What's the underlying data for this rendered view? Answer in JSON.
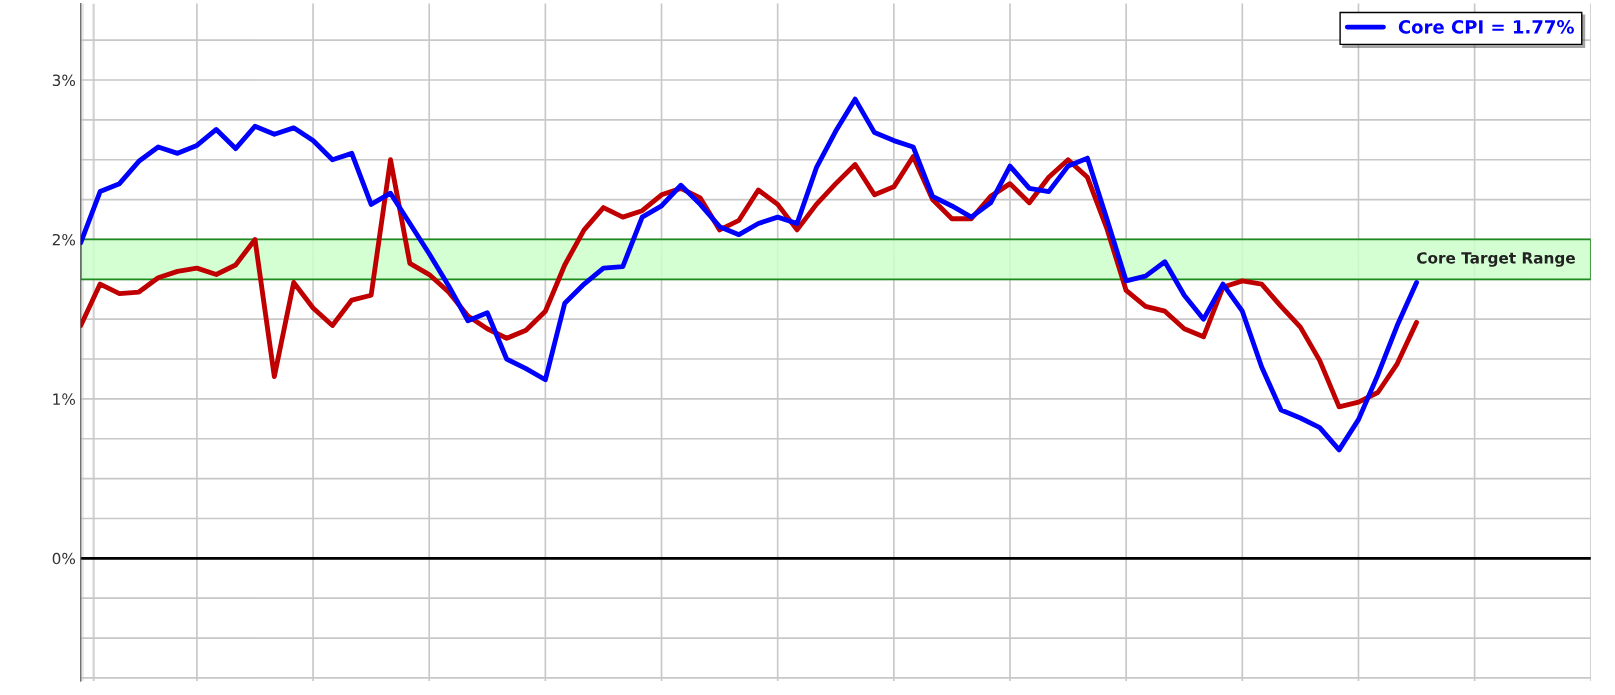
{
  "chart_data": {
    "type": "line",
    "categories": [
      null,
      null,
      null,
      null,
      null,
      null,
      null,
      null,
      null,
      null,
      null,
      null,
      null,
      null,
      null,
      null,
      null,
      null,
      null,
      null,
      null,
      null,
      null,
      null,
      null,
      null,
      null,
      null,
      null,
      null,
      null,
      null,
      null,
      null,
      null,
      null,
      null,
      null,
      null,
      null,
      null,
      null,
      null,
      null,
      null,
      null,
      null,
      null,
      null,
      null,
      null,
      null,
      null,
      null,
      null,
      null,
      null,
      null,
      null,
      null,
      null,
      null,
      null,
      null,
      null,
      null,
      null,
      null,
      null,
      null,
      null,
      null,
      null,
      null,
      null,
      null,
      null,
      null,
      null
    ],
    "series": [
      {
        "color": "#c00000",
        "values": [
          1.46,
          1.72,
          1.66,
          1.67,
          1.76,
          1.8,
          1.82,
          1.78,
          1.84,
          2.0,
          1.14,
          1.73,
          1.57,
          1.46,
          1.62,
          1.65,
          2.5,
          1.85,
          1.78,
          1.67,
          1.52,
          1.44,
          1.38,
          1.43,
          1.55,
          1.84,
          2.06,
          2.2,
          2.14,
          2.18,
          2.28,
          2.32,
          2.26,
          2.06,
          2.12,
          2.31,
          2.22,
          2.06,
          2.22,
          2.35,
          2.47,
          2.28,
          2.33,
          2.52,
          2.25,
          2.13,
          2.13,
          2.27,
          2.35,
          2.23,
          2.39,
          2.5,
          2.39,
          2.07,
          1.68,
          1.58,
          1.55,
          1.44,
          1.39,
          1.7,
          1.74,
          1.72,
          1.58,
          1.45,
          1.24,
          0.95,
          0.98,
          1.04,
          1.22,
          1.48,
          null,
          null,
          null,
          null,
          null,
          null,
          null,
          null,
          null
        ]
      },
      {
        "name": "Core CPI = 1.77%",
        "color": "#0000ff",
        "values": [
          1.98,
          2.3,
          2.35,
          2.49,
          2.58,
          2.54,
          2.59,
          2.69,
          2.57,
          2.71,
          2.66,
          2.7,
          2.62,
          2.5,
          2.54,
          2.22,
          2.29,
          2.1,
          1.91,
          1.71,
          1.49,
          1.54,
          1.25,
          1.19,
          1.12,
          1.6,
          1.72,
          1.82,
          1.83,
          2.14,
          2.21,
          2.34,
          2.22,
          2.08,
          2.03,
          2.1,
          2.14,
          2.1,
          2.45,
          2.68,
          2.88,
          2.67,
          2.62,
          2.58,
          2.27,
          2.21,
          2.14,
          2.23,
          2.46,
          2.32,
          2.3,
          2.46,
          2.51,
          2.13,
          1.74,
          1.77,
          1.86,
          1.65,
          1.5,
          1.72,
          1.55,
          1.2,
          0.93,
          0.88,
          0.82,
          0.68,
          0.87,
          1.15,
          1.46,
          1.73,
          null,
          null,
          null,
          null,
          null,
          null,
          null,
          null,
          null
        ]
      }
    ],
    "ylim": [
      -0.77,
      3.48
    ],
    "yticks": [
      {
        "value": -0.75,
        "label": null
      },
      {
        "value": -0.5,
        "label": null
      },
      {
        "value": -0.25,
        "label": null
      },
      {
        "value": 0,
        "label": "0%"
      },
      {
        "value": 0.25,
        "label": null
      },
      {
        "value": 0.5,
        "label": null
      },
      {
        "value": 0.75,
        "label": null
      },
      {
        "value": 1,
        "label": "1%"
      },
      {
        "value": 1.25,
        "label": null
      },
      {
        "value": 1.5,
        "label": null
      },
      {
        "value": 1.75,
        "label": null
      },
      {
        "value": 2,
        "label": "2%"
      },
      {
        "value": 2.25,
        "label": null
      },
      {
        "value": 2.5,
        "label": null
      },
      {
        "value": 2.75,
        "label": null
      },
      {
        "value": 3,
        "label": "3%"
      },
      {
        "value": 3.25,
        "label": null
      }
    ],
    "grid": true,
    "legend": "top right",
    "line_style": "solid",
    "ref_lines": [
      {
        "axis": "y",
        "value": 0,
        "color": "#000000"
      }
    ],
    "bands": [
      {
        "axis": "y",
        "from": 1.75,
        "to": 2.0,
        "label": "Core Target Range",
        "color": "#ccffcc"
      }
    ]
  }
}
